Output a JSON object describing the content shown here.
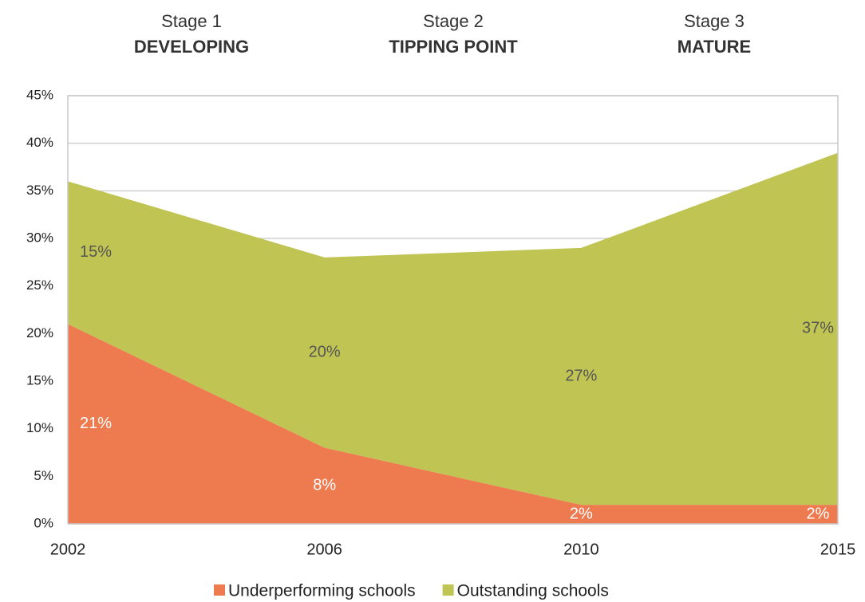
{
  "chart_data": {
    "type": "stacked-area",
    "stages": [
      {
        "stage": "Stage 1",
        "title": "DEVELOPING"
      },
      {
        "stage": "Stage 2",
        "title": "TIPPING POINT"
      },
      {
        "stage": "Stage 3",
        "title": "MATURE"
      }
    ],
    "categories": [
      "2002",
      "2006",
      "2010",
      "2015"
    ],
    "series": [
      {
        "name": "Underperforming schools",
        "color": "#ee7a4f",
        "label_color": "#ffffff",
        "values": [
          21,
          8,
          2,
          2
        ],
        "value_labels": [
          "21%",
          "8%",
          "2%",
          "2%"
        ]
      },
      {
        "name": "Outstanding schools",
        "color": "#c0c453",
        "label_color": "#555555",
        "values": [
          15,
          20,
          27,
          37
        ],
        "value_labels": [
          "15%",
          "20%",
          "27%",
          "37%"
        ]
      }
    ],
    "ylim": [
      0,
      45
    ],
    "yticks": [
      {
        "value": 0,
        "label": "0%"
      },
      {
        "value": 5,
        "label": "5%"
      },
      {
        "value": 10,
        "label": "10%"
      },
      {
        "value": 15,
        "label": "15%"
      },
      {
        "value": 20,
        "label": "20%"
      },
      {
        "value": 25,
        "label": "25%"
      },
      {
        "value": 30,
        "label": "30%"
      },
      {
        "value": 35,
        "label": "35%"
      },
      {
        "value": 40,
        "label": "40%"
      },
      {
        "value": 45,
        "label": "45%"
      }
    ],
    "grid": true,
    "legend": "bottom"
  }
}
